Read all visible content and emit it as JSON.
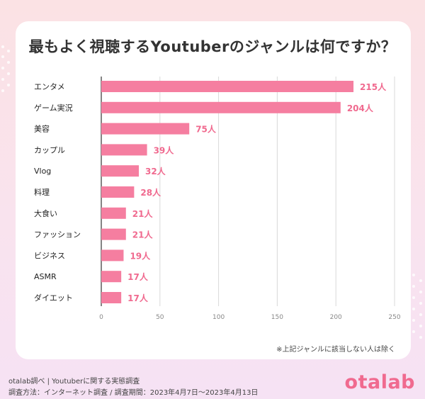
{
  "title": "最もよく視聴するYoutuberのジャンルは何ですか？",
  "note": "※上記ジャンルに該当しない人は除く",
  "footer": {
    "source": "otalab調べ | Youtuberに関する実態調査",
    "method": "調査方法：インターネット調査 / 調査期間：2023年4月7日〜2023年4月13日"
  },
  "logo": "otalab",
  "colors": {
    "bar": "#f57ea0",
    "label": "#f06a8f",
    "grid": "#d9d9d9",
    "axis": "#888888"
  },
  "chart_data": {
    "type": "bar",
    "orientation": "horizontal",
    "categories": [
      "エンタメ",
      "ゲーム実況",
      "美容",
      "カップル",
      "Vlog",
      "料理",
      "大食い",
      "ファッション",
      "ビジネス",
      "ASMR",
      "ダイエット"
    ],
    "values": [
      215,
      204,
      75,
      39,
      32,
      28,
      21,
      21,
      19,
      17,
      17
    ],
    "value_suffix": "人",
    "xlim": [
      0,
      250
    ],
    "xticks": [
      0,
      50,
      100,
      150,
      200,
      250
    ],
    "grid": true
  }
}
